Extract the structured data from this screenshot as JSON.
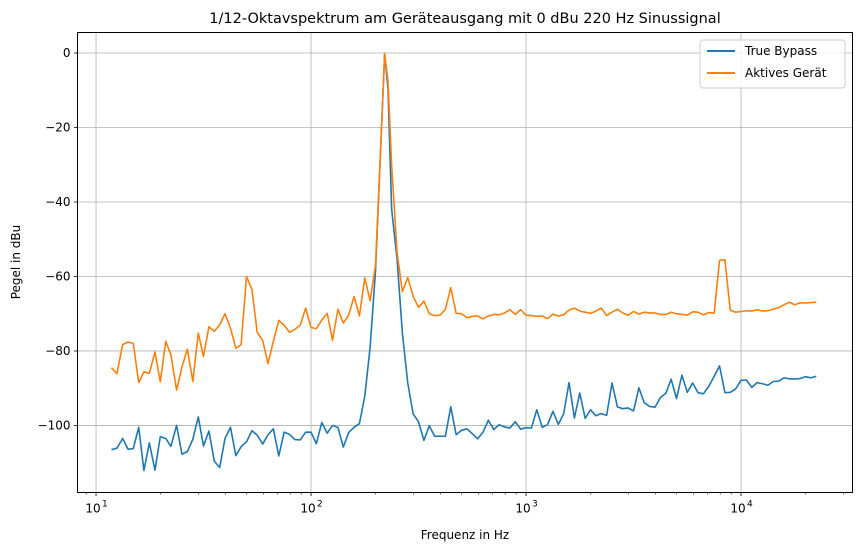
{
  "chart_data": {
    "type": "line",
    "title": "1/12-Oktavspektrum am Geräteausgang mit 0 dBu 220 Hz Sinussignal",
    "xlabel": "Frequenz in Hz",
    "ylabel": "Pegel in dBu",
    "xscale": "log",
    "xlim": [
      8.2,
      33000
    ],
    "ylim": [
      -118,
      5.5
    ],
    "grid": true,
    "legend_position": "top-right",
    "x_ticks": [
      {
        "value": 10,
        "base": "10",
        "exp": "1"
      },
      {
        "value": 100,
        "base": "10",
        "exp": "2"
      },
      {
        "value": 1000,
        "base": "10",
        "exp": "3"
      },
      {
        "value": 10000,
        "base": "10",
        "exp": "4"
      }
    ],
    "y_ticks": [
      0,
      -20,
      -40,
      -60,
      -80,
      -100
    ],
    "y_tick_labels": [
      "0",
      "−20",
      "−40",
      "−60",
      "−80",
      "−100"
    ],
    "series": [
      {
        "name": "True Bypass",
        "color": "#1f77b4",
        "points": [
          [
            11.8,
            -106.5
          ],
          [
            12.5,
            -106.1
          ],
          [
            13.3,
            -103.5
          ],
          [
            14.1,
            -106.4
          ],
          [
            14.9,
            -106.2
          ],
          [
            15.8,
            -100.5
          ],
          [
            16.7,
            -112.1
          ],
          [
            17.7,
            -104.7
          ],
          [
            18.8,
            -112.0
          ],
          [
            19.9,
            -103.0
          ],
          [
            21.1,
            -103.5
          ],
          [
            22.3,
            -105.6
          ],
          [
            23.7,
            -100.0
          ],
          [
            25.1,
            -107.7
          ],
          [
            26.6,
            -107.0
          ],
          [
            28.2,
            -103.7
          ],
          [
            29.9,
            -97.7
          ],
          [
            31.6,
            -105.5
          ],
          [
            33.5,
            -101.5
          ],
          [
            35.5,
            -109.6
          ],
          [
            37.6,
            -111.3
          ],
          [
            39.8,
            -103.5
          ],
          [
            42.2,
            -100.5
          ],
          [
            44.7,
            -108.1
          ],
          [
            47.3,
            -105.7
          ],
          [
            50.1,
            -104.4
          ],
          [
            53.1,
            -101.4
          ],
          [
            56.2,
            -102.6
          ],
          [
            59.6,
            -105.0
          ],
          [
            63.1,
            -102.5
          ],
          [
            66.8,
            -100.9
          ],
          [
            70.8,
            -108.2
          ],
          [
            75.0,
            -101.8
          ],
          [
            79.4,
            -102.4
          ],
          [
            84.1,
            -103.8
          ],
          [
            89.1,
            -103.9
          ],
          [
            94.4,
            -101.8
          ],
          [
            100.0,
            -101.8
          ],
          [
            105.9,
            -104.9
          ],
          [
            112.2,
            -99.2
          ],
          [
            118.9,
            -102.1
          ],
          [
            125.9,
            -100.0
          ],
          [
            133.4,
            -100.5
          ],
          [
            141.3,
            -105.8
          ],
          [
            149.6,
            -101.9
          ],
          [
            158.5,
            -100.5
          ],
          [
            167.9,
            -99.5
          ],
          [
            177.8,
            -92.2
          ],
          [
            188.4,
            -78.9
          ],
          [
            199.5,
            -58.5
          ],
          [
            211.3,
            -24.2
          ],
          [
            220.0,
            -0.2
          ],
          [
            228.0,
            -9.5
          ],
          [
            237.1,
            -42.0
          ],
          [
            251.2,
            -55.2
          ],
          [
            266.1,
            -75.3
          ],
          [
            281.8,
            -88.6
          ],
          [
            298.5,
            -96.9
          ],
          [
            316.2,
            -99.0
          ],
          [
            335.0,
            -104.0
          ],
          [
            354.8,
            -100.1
          ],
          [
            375.8,
            -102.9
          ],
          [
            398.1,
            -102.9
          ],
          [
            421.7,
            -102.9
          ],
          [
            446.7,
            -95.0
          ],
          [
            473.2,
            -102.5
          ],
          [
            501.2,
            -101.3
          ],
          [
            531.0,
            -100.9
          ],
          [
            562.3,
            -102.2
          ],
          [
            595.7,
            -103.6
          ],
          [
            631.0,
            -101.8
          ],
          [
            668.3,
            -98.6
          ],
          [
            707.9,
            -101.1
          ],
          [
            749.9,
            -99.8
          ],
          [
            794.3,
            -100.4
          ],
          [
            841.4,
            -100.7
          ],
          [
            891.3,
            -99.0
          ],
          [
            944.1,
            -101.0
          ],
          [
            1000,
            -100.6
          ],
          [
            1059,
            -100.7
          ],
          [
            1122,
            -95.8
          ],
          [
            1189,
            -100.5
          ],
          [
            1259,
            -99.8
          ],
          [
            1334,
            -96.2
          ],
          [
            1413,
            -99.7
          ],
          [
            1496,
            -96.9
          ],
          [
            1585,
            -88.5
          ],
          [
            1679,
            -98.0
          ],
          [
            1778,
            -91.3
          ],
          [
            1884,
            -98.1
          ],
          [
            1995,
            -95.8
          ],
          [
            2113,
            -97.4
          ],
          [
            2239,
            -96.8
          ],
          [
            2371,
            -97.3
          ],
          [
            2512,
            -88.6
          ],
          [
            2661,
            -95.0
          ],
          [
            2818,
            -95.5
          ],
          [
            2985,
            -95.3
          ],
          [
            3162,
            -96.1
          ],
          [
            3350,
            -89.9
          ],
          [
            3548,
            -93.9
          ],
          [
            3758,
            -94.9
          ],
          [
            3981,
            -95.1
          ],
          [
            4217,
            -92.5
          ],
          [
            4467,
            -91.4
          ],
          [
            4732,
            -87.6
          ],
          [
            5012,
            -92.8
          ],
          [
            5309,
            -86.5
          ],
          [
            5623,
            -91.1
          ],
          [
            5957,
            -88.6
          ],
          [
            6310,
            -91.2
          ],
          [
            6683,
            -91.5
          ],
          [
            7079,
            -89.5
          ],
          [
            7499,
            -86.8
          ],
          [
            7943,
            -84.0
          ],
          [
            8414,
            -91.2
          ],
          [
            8913,
            -91.1
          ],
          [
            9441,
            -90.2
          ],
          [
            10000,
            -87.9
          ],
          [
            10593,
            -87.8
          ],
          [
            11220,
            -89.8
          ],
          [
            11885,
            -88.5
          ],
          [
            12589,
            -88.8
          ],
          [
            13335,
            -89.2
          ],
          [
            14125,
            -88.2
          ],
          [
            14962,
            -88.1
          ],
          [
            15849,
            -87.2
          ],
          [
            16788,
            -87.5
          ],
          [
            17783,
            -87.5
          ],
          [
            18836,
            -87.4
          ],
          [
            19953,
            -86.9
          ],
          [
            21135,
            -87.2
          ],
          [
            22387,
            -86.8
          ]
        ]
      },
      {
        "name": "Aktives Gerät",
        "color": "#ff7f0e",
        "points": [
          [
            11.8,
            -84.5
          ],
          [
            12.5,
            -86.1
          ],
          [
            13.3,
            -78.3
          ],
          [
            14.1,
            -77.6
          ],
          [
            14.9,
            -78.0
          ],
          [
            15.8,
            -88.5
          ],
          [
            16.7,
            -85.6
          ],
          [
            17.7,
            -86.0
          ],
          [
            18.8,
            -80.3
          ],
          [
            19.9,
            -88.3
          ],
          [
            21.1,
            -77.4
          ],
          [
            22.3,
            -81.0
          ],
          [
            23.7,
            -90.5
          ],
          [
            25.1,
            -84.3
          ],
          [
            26.6,
            -79.5
          ],
          [
            28.2,
            -88.2
          ],
          [
            29.9,
            -75.2
          ],
          [
            31.6,
            -81.5
          ],
          [
            33.5,
            -73.5
          ],
          [
            35.5,
            -74.7
          ],
          [
            37.6,
            -73.0
          ],
          [
            39.8,
            -70.0
          ],
          [
            42.2,
            -73.9
          ],
          [
            44.7,
            -79.3
          ],
          [
            47.3,
            -78.3
          ],
          [
            50.1,
            -60.0
          ],
          [
            53.1,
            -63.5
          ],
          [
            56.2,
            -75.0
          ],
          [
            59.6,
            -77.2
          ],
          [
            63.1,
            -83.4
          ],
          [
            66.8,
            -77.4
          ],
          [
            70.8,
            -71.8
          ],
          [
            75.0,
            -73.1
          ],
          [
            79.4,
            -75.0
          ],
          [
            84.1,
            -74.2
          ],
          [
            89.1,
            -73.1
          ],
          [
            94.4,
            -68.5
          ],
          [
            100.0,
            -73.7
          ],
          [
            105.9,
            -74.0
          ],
          [
            112.2,
            -71.7
          ],
          [
            118.9,
            -69.9
          ],
          [
            125.9,
            -77.1
          ],
          [
            133.4,
            -68.8
          ],
          [
            141.3,
            -72.5
          ],
          [
            149.6,
            -70.4
          ],
          [
            158.5,
            -65.4
          ],
          [
            167.9,
            -70.6
          ],
          [
            177.8,
            -60.4
          ],
          [
            188.4,
            -66.5
          ],
          [
            199.5,
            -56.9
          ],
          [
            211.3,
            -24.4
          ],
          [
            220.0,
            -0.1
          ],
          [
            228.0,
            -7.5
          ],
          [
            237.1,
            -30.0
          ],
          [
            251.2,
            -53.5
          ],
          [
            266.1,
            -64.1
          ],
          [
            281.8,
            -60.3
          ],
          [
            298.5,
            -65.3
          ],
          [
            316.2,
            -68.3
          ],
          [
            335.0,
            -66.6
          ],
          [
            354.8,
            -70.0
          ],
          [
            375.8,
            -70.5
          ],
          [
            398.1,
            -70.4
          ],
          [
            421.7,
            -68.8
          ],
          [
            446.7,
            -63.0
          ],
          [
            473.2,
            -69.9
          ],
          [
            501.2,
            -70.0
          ],
          [
            531.0,
            -71.1
          ],
          [
            562.3,
            -70.7
          ],
          [
            595.7,
            -70.6
          ],
          [
            631.0,
            -71.4
          ],
          [
            668.3,
            -70.6
          ],
          [
            707.9,
            -70.2
          ],
          [
            749.9,
            -70.3
          ],
          [
            794.3,
            -69.8
          ],
          [
            841.4,
            -68.9
          ],
          [
            891.3,
            -70.2
          ],
          [
            944.1,
            -68.9
          ],
          [
            1000,
            -70.4
          ],
          [
            1059,
            -70.5
          ],
          [
            1122,
            -70.7
          ],
          [
            1189,
            -70.6
          ],
          [
            1259,
            -71.3
          ],
          [
            1334,
            -70.1
          ],
          [
            1413,
            -70.6
          ],
          [
            1496,
            -70.3
          ],
          [
            1585,
            -69.0
          ],
          [
            1679,
            -68.5
          ],
          [
            1778,
            -69.3
          ],
          [
            1884,
            -69.6
          ],
          [
            1995,
            -69.9
          ],
          [
            2113,
            -69.3
          ],
          [
            2239,
            -68.5
          ],
          [
            2371,
            -70.5
          ],
          [
            2512,
            -69.6
          ],
          [
            2661,
            -68.8
          ],
          [
            2818,
            -69.8
          ],
          [
            2985,
            -70.4
          ],
          [
            3162,
            -69.4
          ],
          [
            3350,
            -70.1
          ],
          [
            3548,
            -69.6
          ],
          [
            3758,
            -69.8
          ],
          [
            3981,
            -69.8
          ],
          [
            4217,
            -70.2
          ],
          [
            4467,
            -70.2
          ],
          [
            4732,
            -69.6
          ],
          [
            5012,
            -70.0
          ],
          [
            5309,
            -70.2
          ],
          [
            5623,
            -70.4
          ],
          [
            5957,
            -69.5
          ],
          [
            6310,
            -69.6
          ],
          [
            6683,
            -70.3
          ],
          [
            7079,
            -69.7
          ],
          [
            7499,
            -69.9
          ],
          [
            7943,
            -55.7
          ],
          [
            8414,
            -55.5
          ],
          [
            8913,
            -69.1
          ],
          [
            9441,
            -69.6
          ],
          [
            10000,
            -69.4
          ],
          [
            10593,
            -69.2
          ],
          [
            11220,
            -69.3
          ],
          [
            11885,
            -68.9
          ],
          [
            12589,
            -69.3
          ],
          [
            13335,
            -69.2
          ],
          [
            14125,
            -68.8
          ],
          [
            14962,
            -68.4
          ],
          [
            15849,
            -67.6
          ],
          [
            16788,
            -66.9
          ],
          [
            17783,
            -67.6
          ],
          [
            18836,
            -67.1
          ],
          [
            19953,
            -67.1
          ],
          [
            21135,
            -67.0
          ],
          [
            22387,
            -66.9
          ]
        ]
      }
    ]
  }
}
